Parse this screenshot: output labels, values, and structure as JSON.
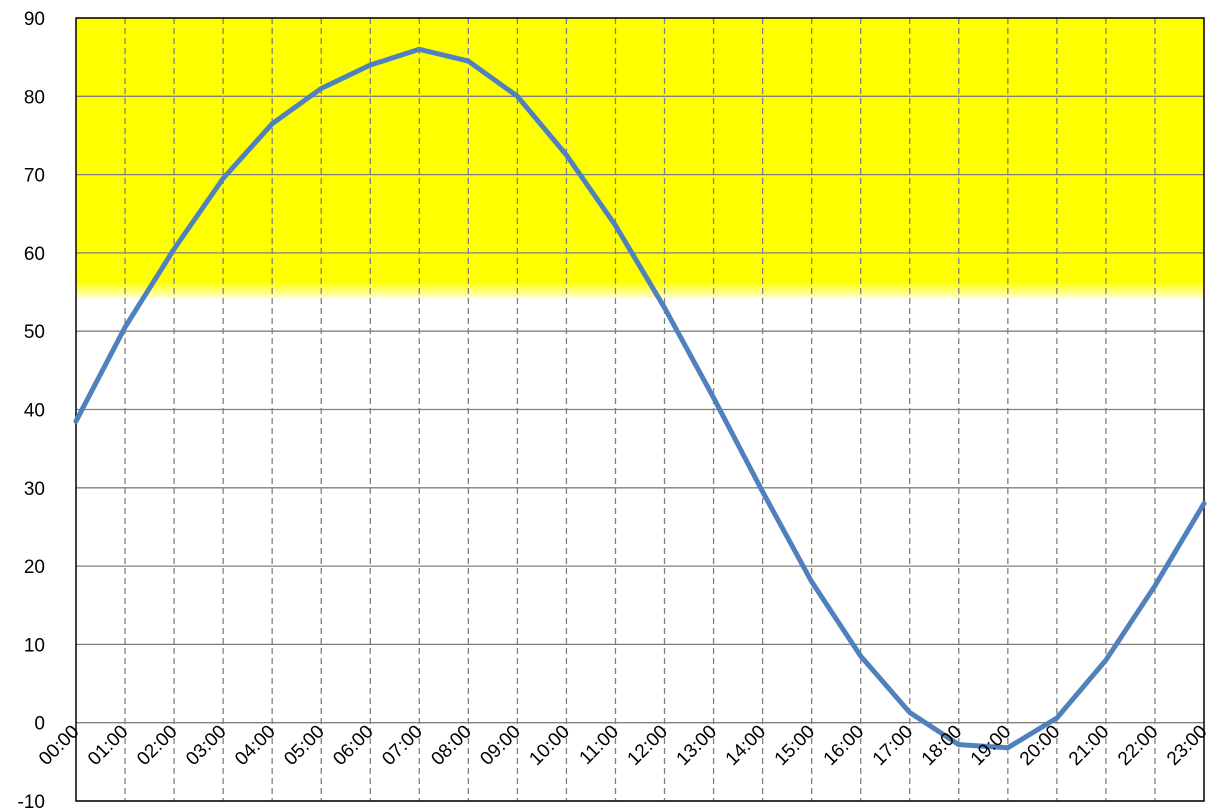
{
  "chart_data": {
    "type": "line",
    "title": "",
    "xlabel": "",
    "ylabel": "",
    "categories": [
      "00:00",
      "01:00",
      "02:00",
      "03:00",
      "04:00",
      "05:00",
      "06:00",
      "07:00",
      "08:00",
      "09:00",
      "10:00",
      "11:00",
      "12:00",
      "13:00",
      "14:00",
      "15:00",
      "16:00",
      "17:00",
      "18:00",
      "19:00",
      "20:00",
      "21:00",
      "22:00",
      "23:00"
    ],
    "series": [
      {
        "values": [
          38.5,
          50.5,
          60.5,
          69.5,
          76.5,
          81,
          84,
          86,
          84.5,
          80,
          72.5,
          63.5,
          53,
          41.5,
          29.5,
          18,
          8.5,
          1.3,
          -2.8,
          -3.2,
          0.6,
          8,
          17.5,
          28
        ]
      }
    ],
    "ylim": [
      -10,
      90
    ],
    "yticks": [
      -10,
      0,
      10,
      20,
      30,
      40,
      50,
      60,
      70,
      80,
      90
    ],
    "highlight_band": {
      "from": 55,
      "to": 90,
      "color": "#ffff00"
    },
    "line_color": "#4f81bd",
    "grid": {
      "horizontal": "solid",
      "vertical": "dashed"
    },
    "legend": "none"
  }
}
